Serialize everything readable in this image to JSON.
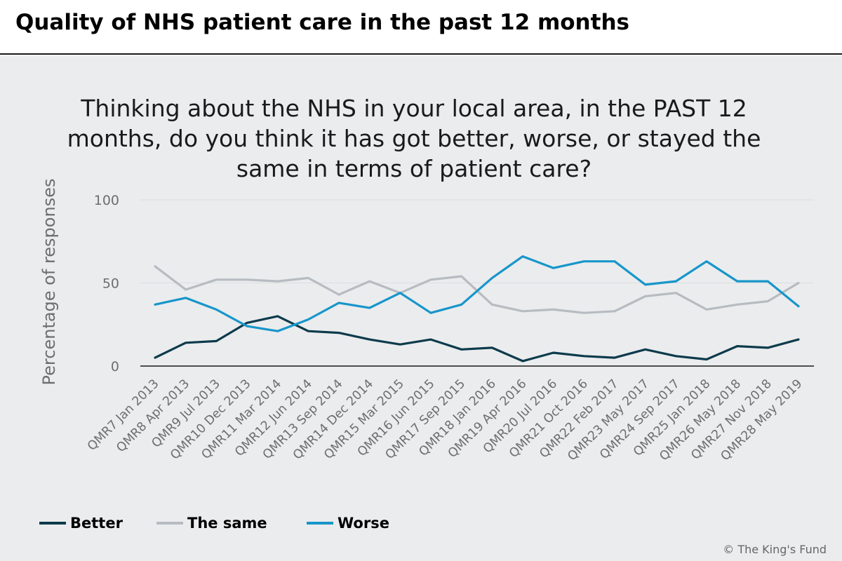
{
  "header": {
    "title": "Quality of NHS patient care in the past 12 months"
  },
  "question": "Thinking about the NHS in your local area, in the PAST 12 months, do you think it has got better, worse, or stayed the same in terms of patient care?",
  "footer": {
    "copyright": "© The King's Fund"
  },
  "colors": {
    "better": "#0c3b4b",
    "same": "#b6bcc1",
    "worse": "#1796ca"
  },
  "chart_data": {
    "type": "line",
    "title": "Thinking about the NHS in your local area, in the PAST 12 months, do you think it has got better, worse, or stayed the same in terms of patient care?",
    "xlabel": "",
    "ylabel": "Percentage of responses",
    "ylim": [
      0,
      100
    ],
    "yticks": [
      0,
      50,
      100
    ],
    "grid": true,
    "legend_position": "bottom-left",
    "categories": [
      "QMR7 Jan 2013",
      "QMR8 Apr 2013",
      "QMR9 Jul 2013",
      "QMR10 Dec 2013",
      "QMR11 Mar 2014",
      "QMR12 Jun 2014",
      "QMR13 Sep 2014",
      "QMR14 Dec 2014",
      "QMR15 Mar 2015",
      "QMR16 Jun 2015",
      "QMR17 Sep 2015",
      "QMR18 Jan 2016",
      "QMR19 Apr 2016",
      "QMR20 Jul 2016",
      "QMR21 Oct 2016",
      "QMR22 Feb 2017",
      "QMR23 May 2017",
      "QMR24 Sep 2017",
      "QMR25 Jan 2018",
      "QMR26 May 2018",
      "QMR27 Nov 2018",
      "QMR28 May 2019"
    ],
    "series": [
      {
        "name": "Better",
        "color": "#0c3b4b",
        "values": [
          5,
          14,
          15,
          26,
          30,
          21,
          20,
          16,
          13,
          16,
          10,
          11,
          3,
          8,
          6,
          5,
          10,
          6,
          4,
          12,
          11,
          16
        ]
      },
      {
        "name": "The same",
        "color": "#b6bcc1",
        "values": [
          60,
          46,
          52,
          52,
          51,
          53,
          43,
          51,
          44,
          52,
          54,
          37,
          33,
          34,
          32,
          33,
          42,
          44,
          34,
          37,
          39,
          50
        ]
      },
      {
        "name": "Worse",
        "color": "#1796ca",
        "values": [
          37,
          41,
          34,
          24,
          21,
          28,
          38,
          35,
          44,
          32,
          37,
          53,
          66,
          59,
          63,
          63,
          49,
          51,
          63,
          51,
          51,
          36
        ]
      }
    ]
  }
}
